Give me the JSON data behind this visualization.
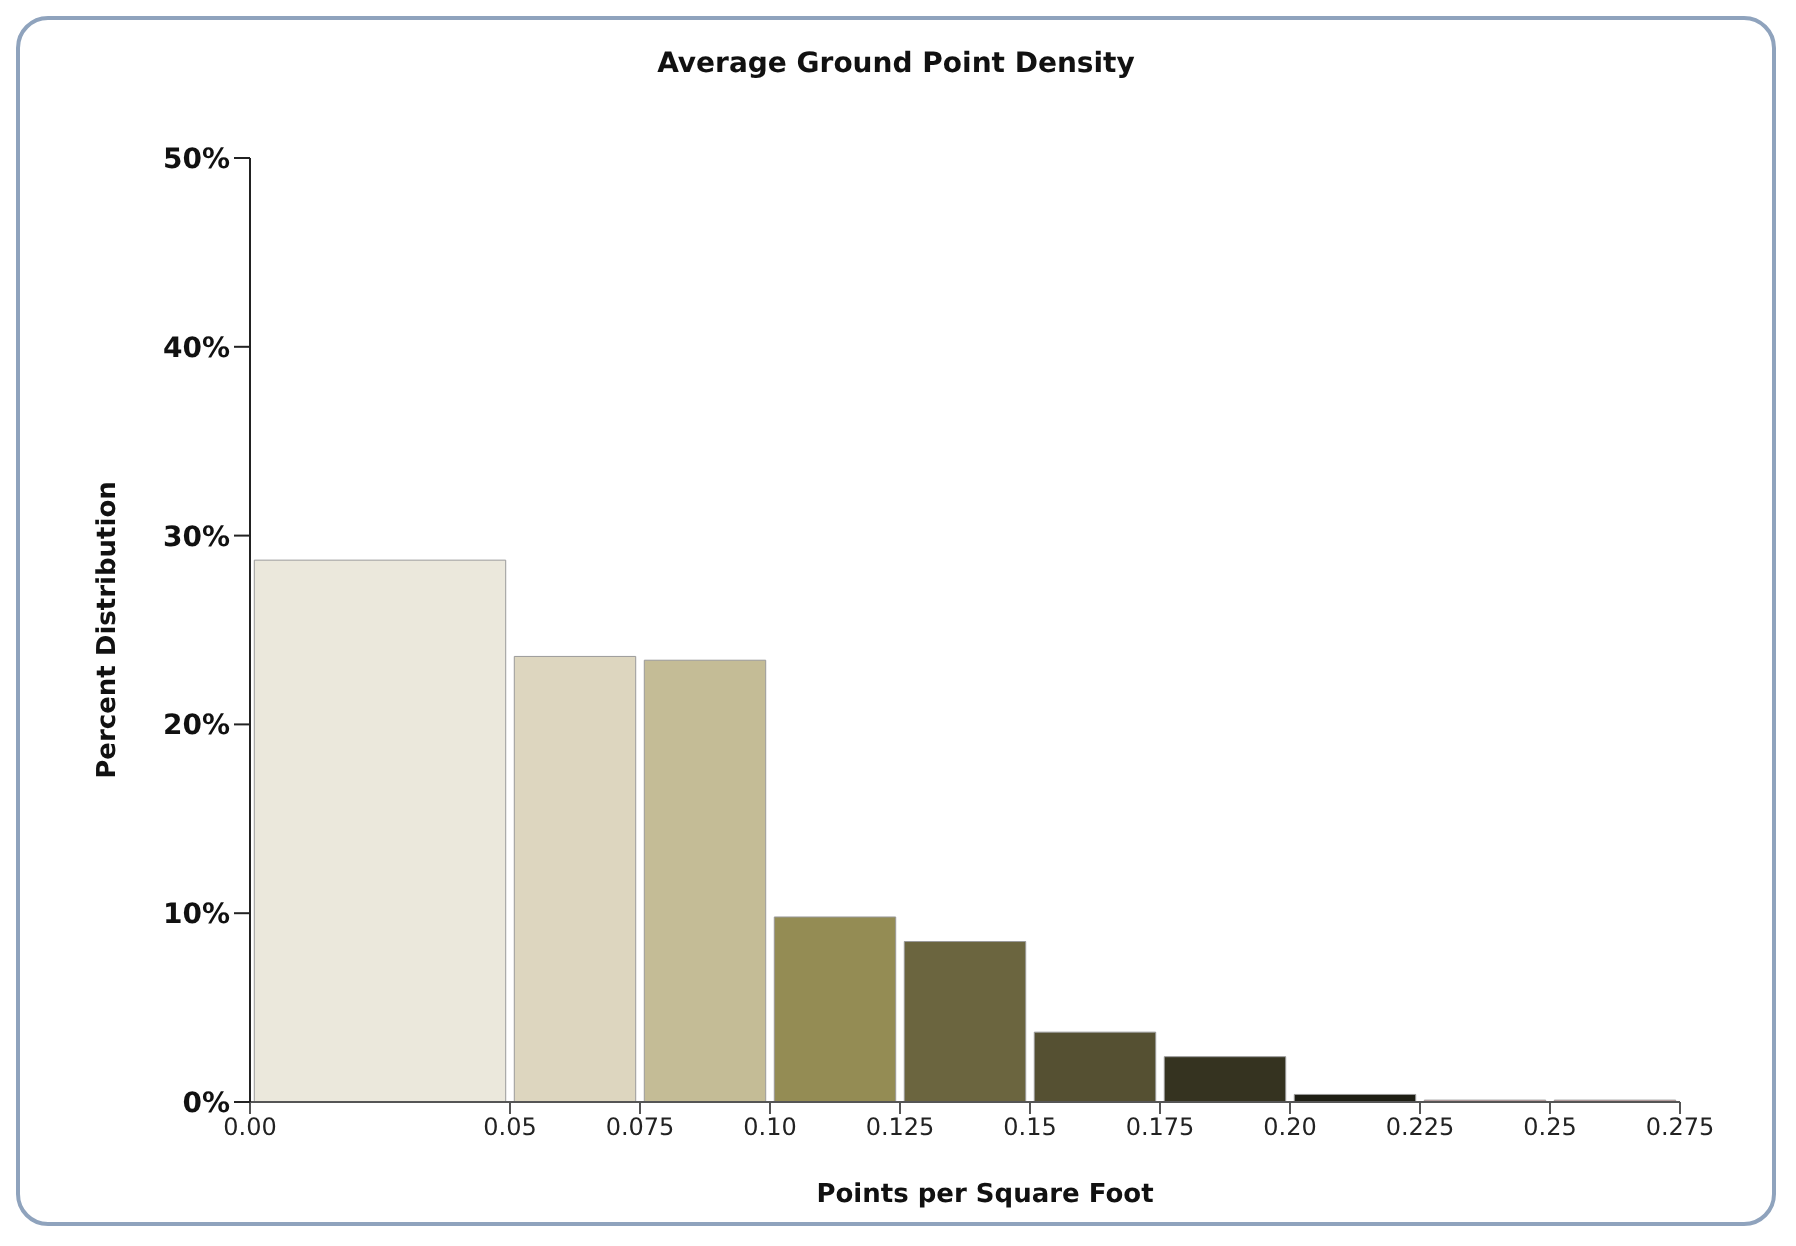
{
  "chart_data": {
    "type": "histogram",
    "title": "Average Ground Point Density",
    "xlabel": "Points per Square Foot",
    "ylabel": "Percent Distribution",
    "bins": [
      0.0,
      0.05,
      0.075,
      0.1,
      0.125,
      0.15,
      0.175,
      0.2,
      0.225,
      0.25,
      0.275
    ],
    "values": [
      28.7,
      23.6,
      23.4,
      9.8,
      8.5,
      3.7,
      2.4,
      0.4,
      0.1,
      0.1
    ],
    "colors": [
      "#ebe8dc",
      "#ddd6bf",
      "#c4bc96",
      "#948c54",
      "#6b653f",
      "#555032",
      "#353320",
      "#1e1e14",
      "#d9a0a0",
      "#d9a0a0"
    ],
    "ylim": [
      0,
      50
    ],
    "yticks": [
      {
        "value": 0,
        "label": "0%"
      },
      {
        "value": 10,
        "label": "10%"
      },
      {
        "value": 20,
        "label": "20%"
      },
      {
        "value": 30,
        "label": "30%"
      },
      {
        "value": 40,
        "label": "40%"
      },
      {
        "value": 50,
        "label": "50%"
      }
    ],
    "xlim": [
      0,
      0.275
    ],
    "xticks": [
      {
        "value": 0,
        "label": "0.00"
      },
      0.05,
      0.075,
      {
        "value": 0.1,
        "label": "0.10"
      },
      0.125,
      0.15,
      0.175,
      {
        "value": 0.2,
        "label": "0.20"
      },
      0.225,
      0.25,
      0.275
    ],
    "grid": false
  }
}
